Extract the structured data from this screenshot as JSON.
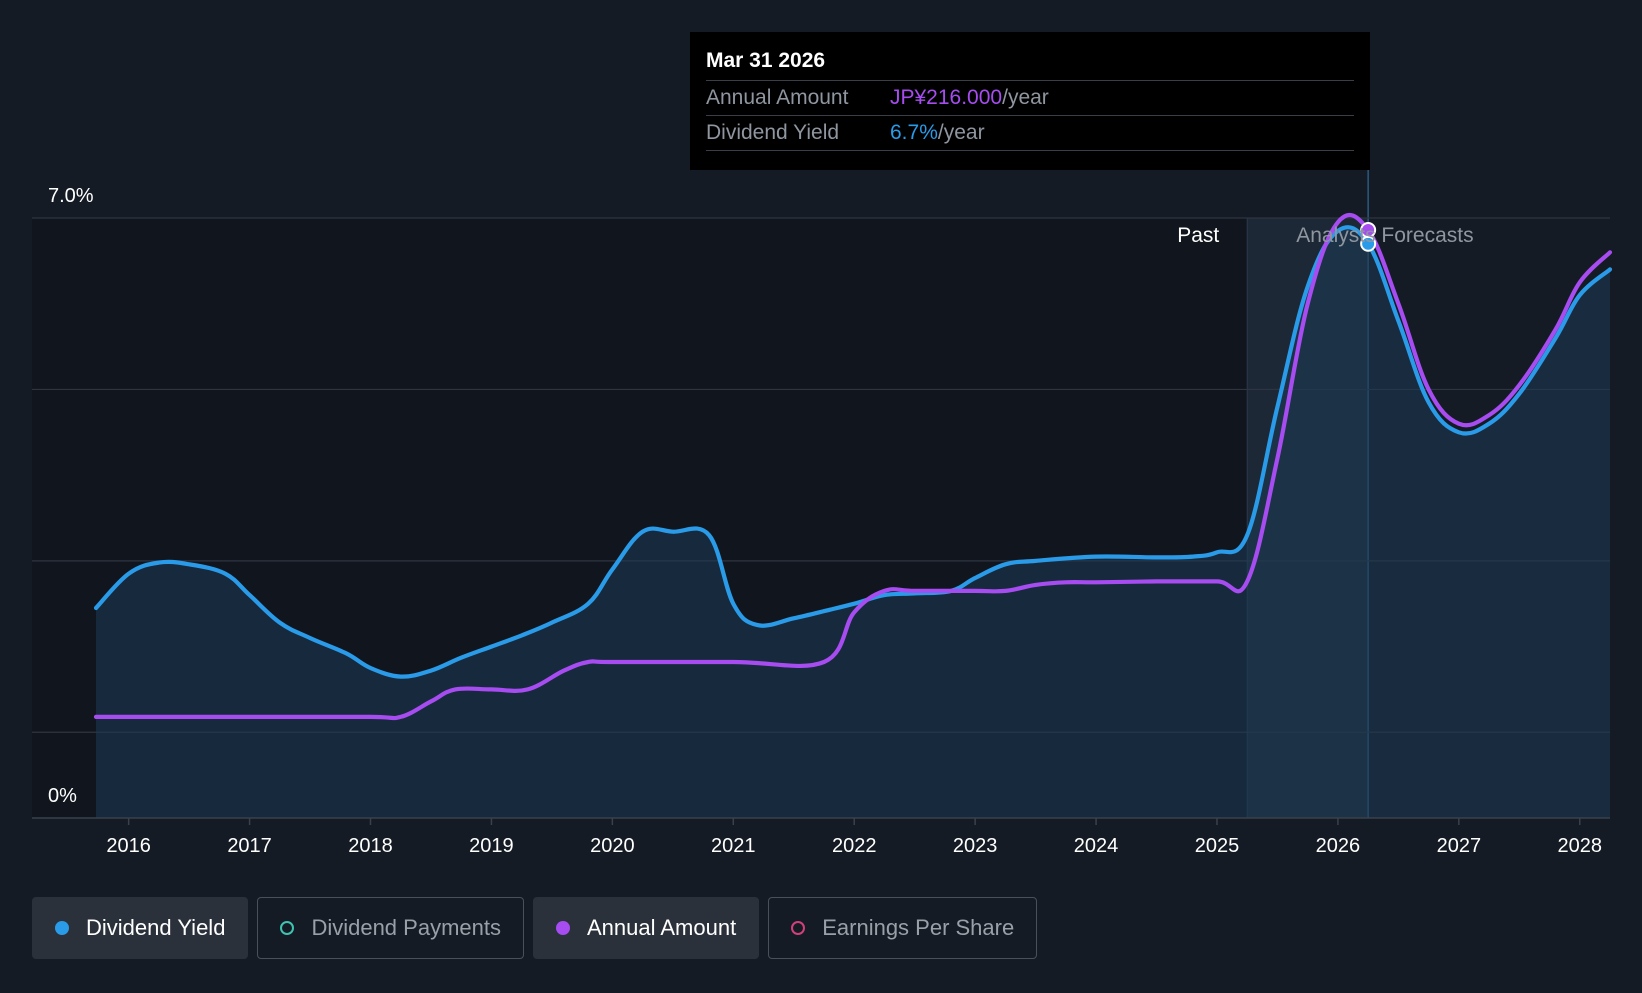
{
  "tooltip": {
    "date": "Mar 31 2026",
    "rows": [
      {
        "label": "Annual Amount",
        "value": "JP¥216.000",
        "unit": "/year"
      },
      {
        "label": "Dividend Yield",
        "value": "6.7%",
        "unit": "/year"
      }
    ]
  },
  "regions": {
    "past": "Past",
    "forecast": "Analysts Forecasts"
  },
  "legend": [
    {
      "label": "Dividend Yield",
      "color": "#2a9be8",
      "active": true,
      "filled": true
    },
    {
      "label": "Dividend Payments",
      "color": "#3fc2b0",
      "active": false,
      "filled": false
    },
    {
      "label": "Annual Amount",
      "color": "#a64cf0",
      "active": true,
      "filled": true
    },
    {
      "label": "Earnings Per Share",
      "color": "#d0407a",
      "active": false,
      "filled": false
    }
  ],
  "colors": {
    "yield": "#2a9be8",
    "amount": "#a64cf0",
    "grid": "#2e3540",
    "background": "#151b24"
  },
  "chart_data": {
    "type": "line",
    "ylim": [
      0,
      7.0
    ],
    "y_ticks": [
      {
        "value": 7.0,
        "label": "7.0%"
      },
      {
        "value": 0,
        "label": "0%"
      }
    ],
    "xlim": [
      2015.73,
      2028.25
    ],
    "x_ticks": [
      2016,
      2017,
      2018,
      2019,
      2020,
      2021,
      2022,
      2023,
      2024,
      2025,
      2026,
      2027,
      2028
    ],
    "past_end": 2025.25,
    "highlight_x": 2026.25,
    "grid": true,
    "series": [
      {
        "name": "Dividend Yield",
        "color": "#2a9be8",
        "area": true,
        "points": [
          [
            2015.73,
            2.45
          ],
          [
            2016.0,
            2.85
          ],
          [
            2016.25,
            2.98
          ],
          [
            2016.5,
            2.96
          ],
          [
            2016.8,
            2.85
          ],
          [
            2017.0,
            2.6
          ],
          [
            2017.25,
            2.28
          ],
          [
            2017.5,
            2.1
          ],
          [
            2017.8,
            1.92
          ],
          [
            2018.0,
            1.75
          ],
          [
            2018.25,
            1.65
          ],
          [
            2018.5,
            1.72
          ],
          [
            2018.75,
            1.87
          ],
          [
            2019.0,
            2.0
          ],
          [
            2019.25,
            2.13
          ],
          [
            2019.5,
            2.28
          ],
          [
            2019.8,
            2.5
          ],
          [
            2020.0,
            2.9
          ],
          [
            2020.25,
            3.34
          ],
          [
            2020.5,
            3.34
          ],
          [
            2020.8,
            3.3
          ],
          [
            2021.0,
            2.5
          ],
          [
            2021.2,
            2.25
          ],
          [
            2021.5,
            2.33
          ],
          [
            2021.8,
            2.43
          ],
          [
            2022.0,
            2.5
          ],
          [
            2022.25,
            2.6
          ],
          [
            2022.5,
            2.62
          ],
          [
            2022.8,
            2.65
          ],
          [
            2023.0,
            2.8
          ],
          [
            2023.25,
            2.96
          ],
          [
            2023.5,
            3.0
          ],
          [
            2024.0,
            3.05
          ],
          [
            2024.5,
            3.04
          ],
          [
            2024.8,
            3.05
          ],
          [
            2025.0,
            3.1
          ],
          [
            2025.25,
            3.3
          ],
          [
            2025.5,
            4.8
          ],
          [
            2025.75,
            6.2
          ],
          [
            2026.0,
            6.85
          ],
          [
            2026.25,
            6.7
          ],
          [
            2026.5,
            5.8
          ],
          [
            2026.75,
            4.85
          ],
          [
            2027.0,
            4.5
          ],
          [
            2027.25,
            4.6
          ],
          [
            2027.5,
            4.95
          ],
          [
            2027.8,
            5.6
          ],
          [
            2028.0,
            6.1
          ],
          [
            2028.25,
            6.4
          ]
        ]
      },
      {
        "name": "Annual Amount",
        "color": "#a64cf0",
        "area": false,
        "points": [
          [
            2015.73,
            1.18
          ],
          [
            2016.0,
            1.18
          ],
          [
            2017.0,
            1.18
          ],
          [
            2018.0,
            1.18
          ],
          [
            2018.25,
            1.18
          ],
          [
            2018.5,
            1.36
          ],
          [
            2018.7,
            1.5
          ],
          [
            2019.0,
            1.5
          ],
          [
            2019.3,
            1.5
          ],
          [
            2019.6,
            1.72
          ],
          [
            2019.8,
            1.82
          ],
          [
            2020.0,
            1.82
          ],
          [
            2021.0,
            1.82
          ],
          [
            2021.75,
            1.82
          ],
          [
            2022.0,
            2.4
          ],
          [
            2022.25,
            2.65
          ],
          [
            2022.5,
            2.65
          ],
          [
            2023.0,
            2.65
          ],
          [
            2023.25,
            2.65
          ],
          [
            2023.5,
            2.72
          ],
          [
            2023.75,
            2.75
          ],
          [
            2024.0,
            2.75
          ],
          [
            2024.5,
            2.76
          ],
          [
            2025.0,
            2.76
          ],
          [
            2025.25,
            2.76
          ],
          [
            2025.5,
            4.2
          ],
          [
            2025.75,
            6.0
          ],
          [
            2026.0,
            6.95
          ],
          [
            2026.25,
            6.86
          ],
          [
            2026.5,
            6.0
          ],
          [
            2026.75,
            5.0
          ],
          [
            2027.0,
            4.6
          ],
          [
            2027.25,
            4.7
          ],
          [
            2027.5,
            5.05
          ],
          [
            2027.8,
            5.7
          ],
          [
            2028.0,
            6.25
          ],
          [
            2028.25,
            6.6
          ]
        ]
      }
    ]
  }
}
